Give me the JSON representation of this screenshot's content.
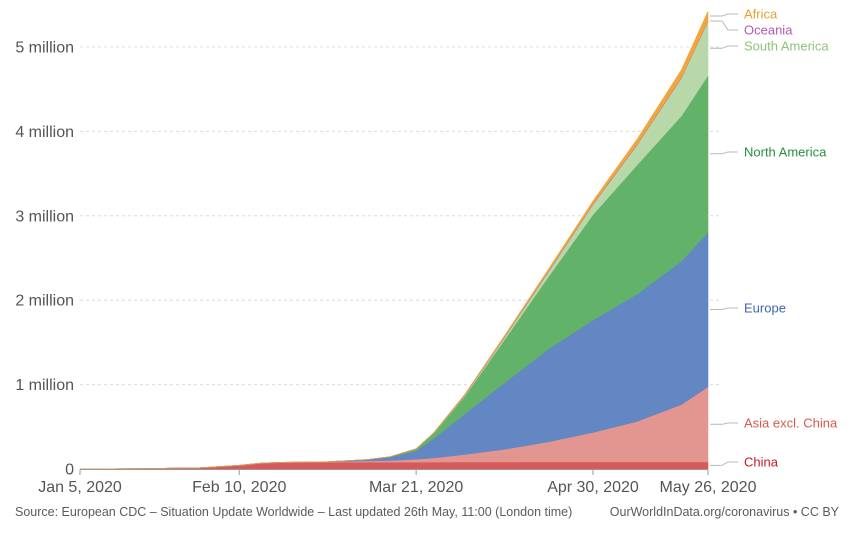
{
  "chart_data": {
    "type": "area",
    "stacked": true,
    "x": [
      "2020-01-05",
      "2020-01-20",
      "2020-02-01",
      "2020-02-10",
      "2020-02-15",
      "2020-02-20",
      "2020-03-01",
      "2020-03-10",
      "2020-03-15",
      "2020-03-21",
      "2020-03-25",
      "2020-04-01",
      "2020-04-10",
      "2020-04-20",
      "2020-04-30",
      "2020-05-10",
      "2020-05-20",
      "2020-05-26"
    ],
    "x_ticks": [
      "Jan 5, 2020",
      "Feb 10, 2020",
      "Mar 21, 2020",
      "Apr 30, 2020",
      "May 26, 2020"
    ],
    "y_ticks": [
      "0",
      "1 million",
      "2 million",
      "3 million",
      "4 million",
      "5 million"
    ],
    "ylim": [
      0,
      5500000
    ],
    "grid": true,
    "legend_position": "right, labels at series ends",
    "series": [
      {
        "name": "China",
        "color": "#d9585a",
        "values": [
          0,
          6000,
          14000,
          42000,
          67000,
          76000,
          80000,
          81000,
          81000,
          81500,
          82000,
          82500,
          83000,
          84000,
          84000,
          84000,
          84500,
          84500
        ]
      },
      {
        "name": "Asia excl. China",
        "color": "#e3958f",
        "values": [
          0,
          0,
          500,
          1500,
          2500,
          3500,
          6000,
          15000,
          20000,
          35000,
          50000,
          90000,
          150000,
          240000,
          350000,
          480000,
          680000,
          890000
        ]
      },
      {
        "name": "Europe",
        "color": "#6287c3",
        "values": [
          0,
          0,
          0,
          0,
          0,
          0,
          1000,
          15000,
          40000,
          100000,
          230000,
          480000,
          790000,
          1100000,
          1330000,
          1510000,
          1700000,
          1830000
        ]
      },
      {
        "name": "North America",
        "color": "#62b26a",
        "values": [
          0,
          0,
          0,
          0,
          0,
          0,
          0,
          1000,
          3000,
          20000,
          60000,
          210000,
          510000,
          860000,
          1250000,
          1530000,
          1720000,
          1860000
        ]
      },
      {
        "name": "South America",
        "color": "#b8d8a9",
        "values": [
          0,
          0,
          0,
          0,
          0,
          0,
          0,
          0,
          500,
          2000,
          5000,
          12000,
          28000,
          60000,
          120000,
          240000,
          450000,
          640000
        ]
      },
      {
        "name": "Oceania",
        "color": "#b65fb0",
        "values": [
          0,
          0,
          0,
          0,
          0,
          0,
          0,
          100,
          300,
          1200,
          2800,
          5500,
          7000,
          7600,
          7900,
          8100,
          8300,
          8400
        ]
      },
      {
        "name": "Africa",
        "color": "#f1a63b",
        "values": [
          0,
          0,
          0,
          0,
          0,
          0,
          0,
          30,
          100,
          1000,
          2000,
          5000,
          12000,
          22000,
          35000,
          58000,
          90000,
          110000
        ]
      }
    ],
    "legend": [
      {
        "name": "Africa",
        "color": "#e8a035"
      },
      {
        "name": "Oceania",
        "color": "#b15bb7"
      },
      {
        "name": "South America",
        "color": "#8fc47c"
      },
      {
        "name": "North America",
        "color": "#2b8d3d"
      },
      {
        "name": "Europe",
        "color": "#3e66b4"
      },
      {
        "name": "Asia excl. China",
        "color": "#d8594a"
      },
      {
        "name": "China",
        "color": "#c81a24"
      }
    ]
  },
  "footer": {
    "source": "Source: European CDC – Situation Update Worldwide – Last updated 26th May, 11:00 (London time)",
    "credit": "OurWorldInData.org/coronavirus • CC BY"
  }
}
